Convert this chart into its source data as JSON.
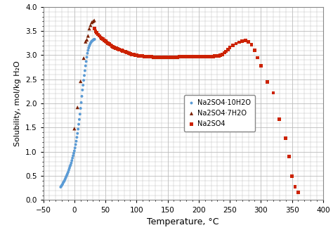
{
  "xlabel": "Temperature, °C",
  "ylabel": "Solubility, mol/kg H₂O",
  "xlim": [
    -50,
    400
  ],
  "ylim": [
    0.0,
    4.0
  ],
  "xticks": [
    -50,
    0,
    50,
    100,
    150,
    200,
    250,
    300,
    350,
    400
  ],
  "yticks": [
    0.0,
    0.5,
    1.0,
    1.5,
    2.0,
    2.5,
    3.0,
    3.5,
    4.0
  ],
  "legend_labels": [
    "Na2SO4·10H2O",
    "Na2SO4·7H2O",
    "Na2SO4"
  ],
  "series1_color": "#5B9BD5",
  "series2_color": "#7B2000",
  "series3_color": "#CC2200",
  "series1_marker": "o",
  "series2_marker": "^",
  "series3_marker": "s",
  "series1_size": 8,
  "series2_size": 14,
  "series3_size": 12,
  "na2so4_10h2o_T": [
    -22,
    -21,
    -20,
    -19,
    -18,
    -17,
    -16,
    -15,
    -14,
    -13,
    -12,
    -11,
    -10,
    -9,
    -8,
    -7,
    -6,
    -5,
    -4,
    -3,
    -2,
    -1,
    0,
    1,
    2,
    3,
    4,
    5,
    6,
    7,
    8,
    9,
    10,
    11,
    12,
    13,
    14,
    15,
    16,
    17,
    18,
    19,
    20,
    21,
    22,
    23,
    24,
    25,
    26,
    27,
    28,
    29,
    30,
    31,
    32,
    32.5
  ],
  "na2so4_10h2o_S": [
    0.27,
    0.29,
    0.31,
    0.33,
    0.36,
    0.38,
    0.4,
    0.43,
    0.46,
    0.49,
    0.52,
    0.55,
    0.58,
    0.62,
    0.66,
    0.7,
    0.73,
    0.77,
    0.82,
    0.87,
    0.92,
    0.97,
    1.02,
    1.08,
    1.15,
    1.22,
    1.3,
    1.38,
    1.47,
    1.57,
    1.67,
    1.78,
    1.9,
    2.02,
    2.15,
    2.28,
    2.38,
    2.48,
    2.58,
    2.68,
    2.78,
    2.87,
    2.96,
    3.04,
    3.1,
    3.15,
    3.19,
    3.22,
    3.25,
    3.27,
    3.29,
    3.3,
    3.31,
    3.32,
    3.33,
    3.33
  ],
  "na2so4_7h2o_T": [
    0,
    5,
    10,
    15,
    18,
    20,
    22,
    24,
    26,
    28,
    30,
    32
  ],
  "na2so4_7h2o_S": [
    1.48,
    1.92,
    2.46,
    2.94,
    3.28,
    3.32,
    3.4,
    3.55,
    3.62,
    3.68,
    3.7,
    3.72
  ],
  "na2so4_T": [
    32,
    34,
    36,
    38,
    40,
    42,
    44,
    46,
    48,
    50,
    52,
    54,
    56,
    58,
    60,
    62,
    64,
    66,
    68,
    70,
    72,
    74,
    76,
    78,
    80,
    82,
    84,
    86,
    88,
    90,
    92,
    94,
    96,
    98,
    100,
    103,
    106,
    109,
    112,
    115,
    118,
    121,
    124,
    127,
    130,
    133,
    136,
    139,
    142,
    145,
    148,
    151,
    154,
    157,
    160,
    163,
    166,
    169,
    172,
    175,
    178,
    181,
    184,
    187,
    190,
    193,
    196,
    199,
    202,
    205,
    208,
    211,
    214,
    217,
    220,
    223,
    226,
    229,
    232,
    235,
    238,
    241,
    244,
    247,
    250,
    255,
    260,
    265,
    270,
    275,
    280,
    285,
    290,
    295,
    300,
    310,
    320,
    330,
    340,
    345,
    350,
    355,
    360
  ],
  "na2so4_S": [
    3.55,
    3.5,
    3.46,
    3.43,
    3.4,
    3.37,
    3.35,
    3.33,
    3.31,
    3.29,
    3.27,
    3.25,
    3.23,
    3.21,
    3.19,
    3.17,
    3.16,
    3.15,
    3.14,
    3.13,
    3.12,
    3.11,
    3.1,
    3.09,
    3.08,
    3.07,
    3.06,
    3.05,
    3.04,
    3.03,
    3.02,
    3.01,
    3.01,
    3.0,
    3.0,
    2.99,
    2.98,
    2.98,
    2.97,
    2.97,
    2.97,
    2.97,
    2.97,
    2.96,
    2.96,
    2.96,
    2.96,
    2.96,
    2.96,
    2.96,
    2.96,
    2.96,
    2.96,
    2.96,
    2.96,
    2.96,
    2.96,
    2.97,
    2.97,
    2.97,
    2.97,
    2.97,
    2.97,
    2.97,
    2.97,
    2.97,
    2.97,
    2.97,
    2.97,
    2.97,
    2.97,
    2.97,
    2.97,
    2.97,
    2.97,
    2.97,
    2.98,
    2.98,
    2.99,
    3.0,
    3.02,
    3.05,
    3.08,
    3.12,
    3.16,
    3.2,
    3.24,
    3.27,
    3.29,
    3.3,
    3.28,
    3.22,
    3.1,
    2.95,
    2.78,
    2.45,
    2.22,
    1.68,
    1.28,
    0.9,
    0.5,
    0.28,
    0.16
  ],
  "background_color": "#ffffff",
  "grid_color": "#bbbbbb"
}
